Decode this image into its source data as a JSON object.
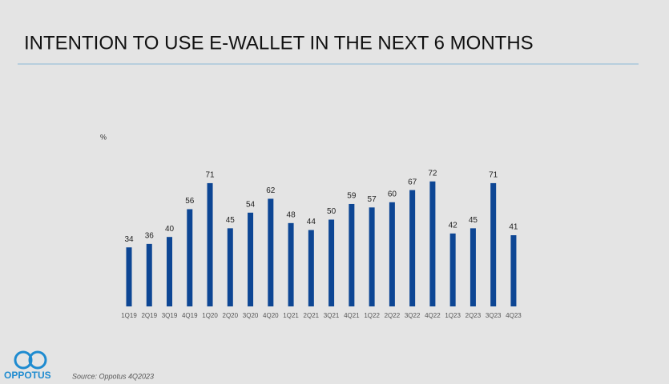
{
  "chart_data": {
    "type": "bar",
    "title": "INTENTION TO USE E-WALLET IN THE NEXT 6 MONTHS",
    "unit_label": "%",
    "categories": [
      "1Q19",
      "2Q19",
      "3Q19",
      "4Q19",
      "1Q20",
      "2Q20",
      "3Q20",
      "4Q20",
      "1Q21",
      "2Q21",
      "3Q21",
      "4Q21",
      "1Q22",
      "2Q22",
      "3Q22",
      "4Q22",
      "1Q23",
      "2Q23",
      "3Q23",
      "4Q23"
    ],
    "values": [
      34,
      36,
      40,
      56,
      71,
      45,
      54,
      62,
      48,
      44,
      50,
      59,
      57,
      60,
      67,
      72,
      42,
      45,
      71,
      41
    ],
    "color": "#0d4694"
  },
  "source": "Source: Oppotus 4Q2023",
  "logo": "OPPOTUS"
}
